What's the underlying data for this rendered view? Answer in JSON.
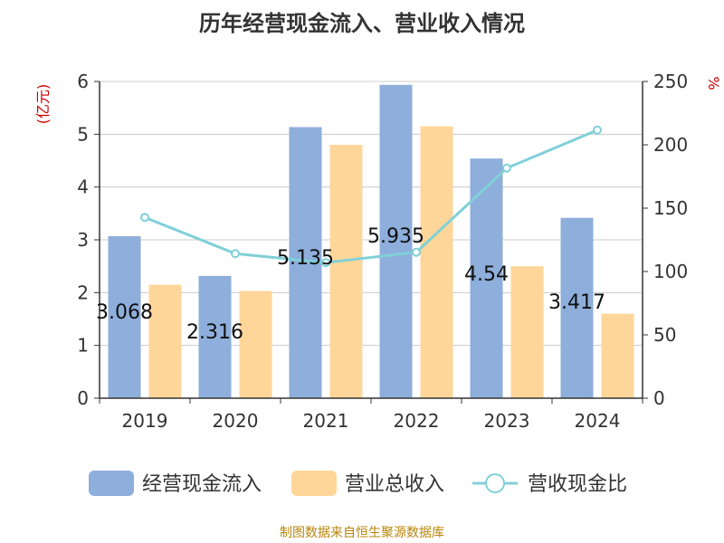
{
  "title": "历年经营现金流入、营业收入情况",
  "footer": "制图数据来自恒生聚源数据库",
  "colors": {
    "cash_inflow": "#8eaedb",
    "revenue": "#ffd699",
    "ratio": "#80d0d8",
    "axis_unit": "#cc0000",
    "text": "#333333"
  },
  "chart_data": {
    "type": "bar",
    "categories": [
      "2019",
      "2020",
      "2021",
      "2022",
      "2023",
      "2024"
    ],
    "series": [
      {
        "name": "经营现金流入",
        "type": "bar",
        "axis": "left",
        "values": [
          3.068,
          2.316,
          5.135,
          5.935,
          4.54,
          3.417
        ],
        "labels": [
          "3.068",
          "2.316",
          "5.135",
          "5.935",
          "4.54",
          "3.417"
        ]
      },
      {
        "name": "营业总收入",
        "type": "bar",
        "axis": "left",
        "values": [
          2.15,
          2.03,
          4.8,
          5.15,
          2.5,
          1.6
        ]
      },
      {
        "name": "营收现金比",
        "type": "line",
        "axis": "right",
        "values": [
          142.7,
          114.1,
          107.0,
          115.2,
          181.6,
          211.6
        ]
      }
    ],
    "y_left": {
      "label": "(亿元)",
      "min": 0,
      "max": 6,
      "ticks": [
        "0",
        "1",
        "2",
        "3",
        "4",
        "5",
        "6"
      ]
    },
    "y_right": {
      "label": "%",
      "min": 0,
      "max": 250,
      "ticks": [
        "0",
        "50",
        "100",
        "150",
        "200",
        "250"
      ]
    },
    "grid": true,
    "legend": "bottom"
  }
}
